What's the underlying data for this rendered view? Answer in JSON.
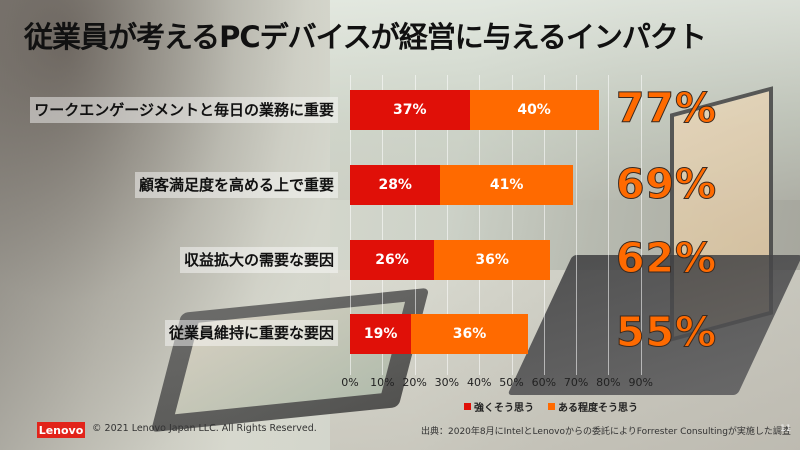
{
  "slide": {
    "title": "従業員が考えるPCデバイスが経営に与えるインパクト",
    "page_number": "11"
  },
  "chart_data": {
    "type": "bar",
    "orientation": "horizontal",
    "stacked": true,
    "title": "従業員が考えるPCデバイスが経営に与えるインパクト",
    "categories": [
      "ワークエンゲージメントと毎日の業務に重要",
      "顧客満足度を高める上で重要",
      "収益拡大の需要な要因",
      "従業員維持に重要な要因"
    ],
    "series": [
      {
        "name": "強くそう思う",
        "color": "#e01008",
        "values": [
          37,
          28,
          26,
          19
        ]
      },
      {
        "name": "ある程度そう思う",
        "color": "#ff6a00",
        "values": [
          40,
          41,
          36,
          36
        ]
      }
    ],
    "totals": [
      77,
      69,
      62,
      55
    ],
    "xlim": [
      0,
      90
    ],
    "x_ticks": [
      "0%",
      "10%",
      "20%",
      "30%",
      "40%",
      "50%",
      "60%",
      "70%",
      "80%",
      "90%"
    ],
    "grid": true,
    "legend_position": "bottom",
    "xlabel": "",
    "ylabel": ""
  },
  "bars": [
    {
      "label": "ワークエンゲージメントと毎日の業務に重要",
      "strong": "37%",
      "some": "40%",
      "total": "77%"
    },
    {
      "label": "顧客満足度を高める上で重要",
      "strong": "28%",
      "some": "41%",
      "total": "69%"
    },
    {
      "label": "収益拡大の需要な要因",
      "strong": "26%",
      "some": "36%",
      "total": "62%"
    },
    {
      "label": "従業員維持に重要な要因",
      "strong": "19%",
      "some": "36%",
      "total": "55%"
    }
  ],
  "legend": {
    "strong": "強くそう思う",
    "some": "ある程度そう思う"
  },
  "colors": {
    "strong": "#e01008",
    "some": "#ff6a00",
    "brand": "#e2231a"
  },
  "footer": {
    "logo": "Lenovo",
    "copyright": "© 2021 Lenovo Japan LLC. All Rights Reserved.",
    "source": "出典：2020年8月にIntelとLenovoからの委託によりForrester Consultingが実施した調査"
  }
}
